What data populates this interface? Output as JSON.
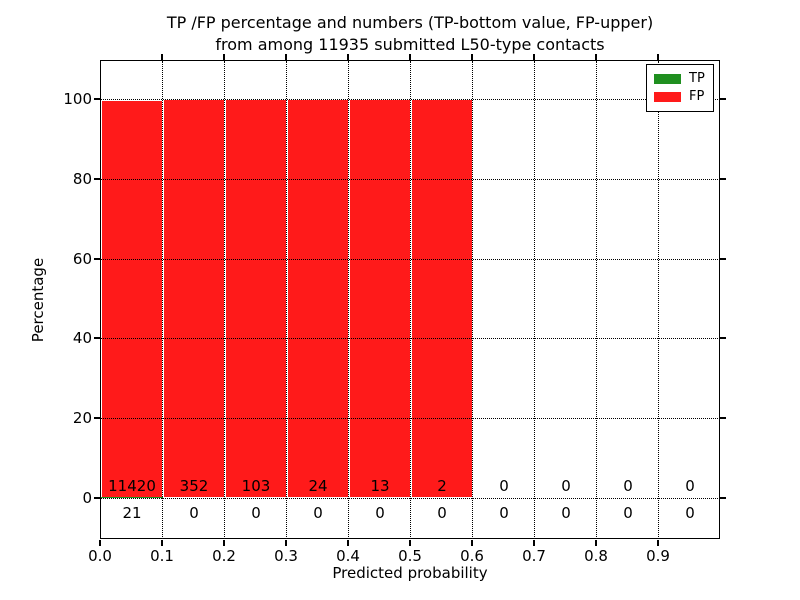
{
  "figure": {
    "title_line1": "TP /FP percentage and numbers (TP-bottom value, FP-upper)",
    "title_line2": "from among 11935 submitted L50-type contacts"
  },
  "axes": {
    "xlabel": "Predicted probability",
    "ylabel": "Percentage",
    "xticks": [
      "0.0",
      "0.1",
      "0.2",
      "0.3",
      "0.4",
      "0.5",
      "0.6",
      "0.7",
      "0.8",
      "0.9"
    ],
    "yticks": [
      "0",
      "20",
      "40",
      "60",
      "80",
      "100"
    ]
  },
  "legend": {
    "items": [
      {
        "label": "TP",
        "color": "#1f8f1f"
      },
      {
        "label": "FP",
        "color": "#ff1a1a"
      }
    ]
  },
  "chart_data": {
    "type": "bar",
    "stacked": true,
    "title": "TP /FP percentage and numbers (TP-bottom value, FP-upper) from among 11935 submitted L50-type contacts",
    "xlabel": "Predicted probability",
    "ylabel": "Percentage",
    "xlim": [
      0.0,
      1.0
    ],
    "ylim": [
      -10.5,
      110
    ],
    "grid": "dotted, both axes",
    "legend_position": "upper right",
    "total_submitted": 11935,
    "contact_type": "L50",
    "bin_starts": [
      0.0,
      0.1,
      0.2,
      0.3,
      0.4,
      0.5,
      0.6,
      0.7,
      0.8,
      0.9
    ],
    "bin_width": 0.1,
    "series": [
      {
        "name": "TP",
        "color": "#1f8f1f",
        "counts": [
          21,
          0,
          0,
          0,
          0,
          0,
          0,
          0,
          0,
          0
        ],
        "percent": [
          0.18,
          0,
          0,
          0,
          0,
          0,
          0,
          0,
          0,
          0
        ]
      },
      {
        "name": "FP",
        "color": "#ff1a1a",
        "counts": [
          11420,
          352,
          103,
          24,
          13,
          2,
          0,
          0,
          0,
          0
        ],
        "percent": [
          99.82,
          100,
          100,
          100,
          100,
          100,
          0,
          0,
          0,
          0
        ]
      }
    ]
  }
}
